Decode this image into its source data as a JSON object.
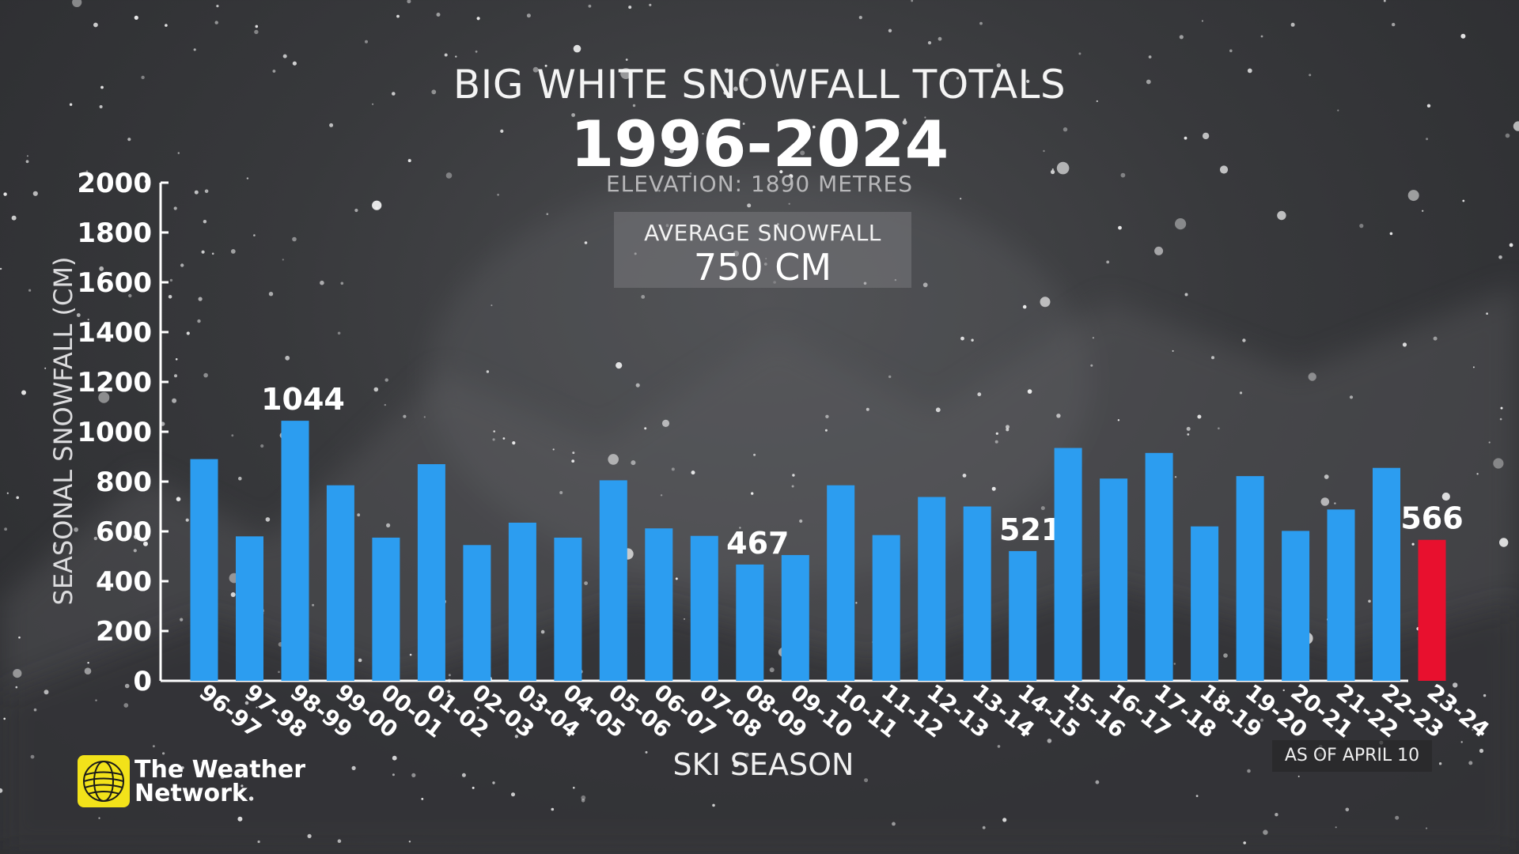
{
  "title": "BIG WHITE SNOWFALL TOTALS",
  "years": "1996-2024",
  "elevation": "ELEVATION: 1890 METRES",
  "average": {
    "label": "AVERAGE SNOWFALL",
    "value": "750 CM"
  },
  "as_of": "AS OF APRIL 10",
  "brand": {
    "line1": "The Weather",
    "line2": "Network"
  },
  "colors": {
    "bar": "#2c9df0",
    "highlight": "#e8102e",
    "axis": "#ffffff"
  },
  "chart_data": {
    "type": "bar",
    "xlabel": "SKI SEASON",
    "ylabel": "SEASONAL SNOWFALL (CM)",
    "ylim": [
      0,
      2000
    ],
    "yticks": [
      0,
      200,
      400,
      600,
      800,
      1000,
      1200,
      1400,
      1600,
      1800,
      2000
    ],
    "categories": [
      "96-97",
      "97-98",
      "98-99",
      "99-00",
      "00-01",
      "01-02",
      "02-03",
      "03-04",
      "04-05",
      "05-06",
      "06-07",
      "07-08",
      "08-09",
      "09-10",
      "10-11",
      "11-12",
      "12-13",
      "13-14",
      "14-15",
      "15-16",
      "16-17",
      "17-18",
      "18-19",
      "19-20",
      "20-21",
      "21-22",
      "22-23",
      "23-24"
    ],
    "values": [
      890,
      580,
      1044,
      785,
      575,
      870,
      545,
      635,
      575,
      805,
      612,
      582,
      467,
      505,
      785,
      585,
      738,
      700,
      521,
      935,
      812,
      915,
      620,
      822,
      602,
      688,
      855,
      566
    ],
    "labeled_values": [
      "1044",
      "467",
      "521",
      "566"
    ],
    "highlight_index": 27,
    "grid": false
  }
}
